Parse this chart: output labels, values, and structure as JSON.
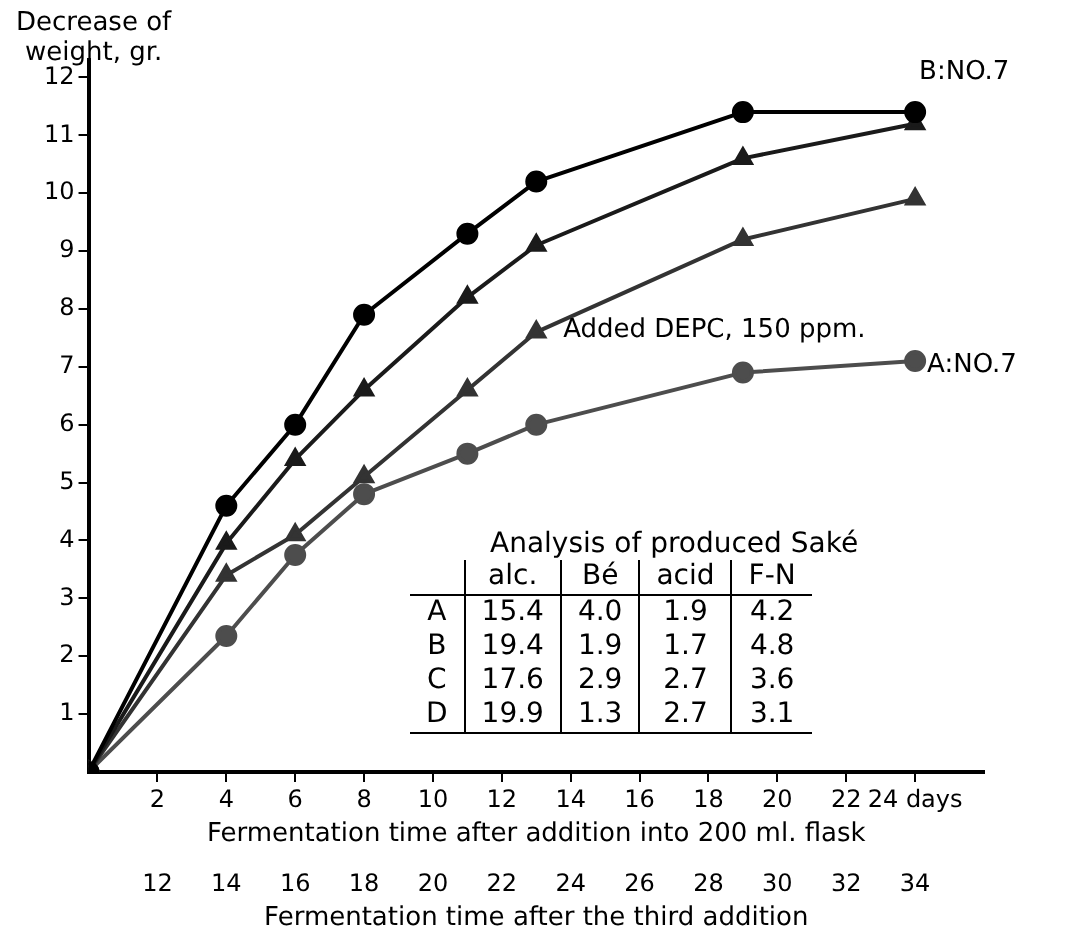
{
  "chart_data": [
    {
      "type": "line",
      "ylabel": "Decrease of\nweight, gr.",
      "xlabel": "Fermentation time after addition into 200 ml. flask",
      "x2label": "Fermentation time after the third addition",
      "x": [
        0,
        4,
        6,
        8,
        11,
        13,
        19,
        24
      ],
      "series": [
        {
          "name": "B:NO.7",
          "color": "#000000",
          "marker": "circle",
          "values": [
            0,
            4.6,
            6.0,
            7.9,
            9.3,
            10.2,
            11.4,
            11.4
          ]
        },
        {
          "color": "#1a1a1a",
          "marker": "triangle",
          "values": [
            0,
            3.95,
            5.4,
            6.6,
            8.2,
            9.1,
            10.6,
            11.2
          ]
        },
        {
          "color": "#333333",
          "marker": "triangle",
          "values": [
            0,
            3.4,
            4.1,
            5.1,
            6.6,
            7.6,
            9.2,
            9.9
          ]
        },
        {
          "name": "A:NO.7",
          "color": "#4d4d4d",
          "marker": "circle",
          "values": [
            0,
            2.35,
            3.75,
            4.8,
            5.5,
            6.0,
            6.9,
            7.1
          ]
        }
      ],
      "xlim": [
        0,
        26
      ],
      "xticks": [
        2,
        4,
        6,
        8,
        10,
        12,
        14,
        16,
        18,
        20,
        22,
        {
          "value": 24,
          "label": "24 days"
        }
      ],
      "x2lim": [
        10,
        36
      ],
      "x2ticks": [
        12,
        14,
        16,
        18,
        20,
        22,
        24,
        26,
        28,
        30,
        32,
        34
      ],
      "ylim": [
        0,
        12.3
      ],
      "yticks": [
        1,
        2,
        3,
        4,
        5,
        6,
        7,
        8,
        9,
        10,
        11,
        12
      ],
      "grid": false,
      "legend": false,
      "line_style": "solid",
      "annotations": [
        "Added DEPC, 150 ppm."
      ]
    },
    {
      "type": "other",
      "title": "Analysis of produced Saké",
      "categories": [
        "A",
        "B",
        "C",
        "D"
      ],
      "series": [
        {
          "name": "alc.",
          "values": [
            15.4,
            19.4,
            17.6,
            19.9
          ],
          "value_labels": [
            "15.4",
            "19.4",
            "17.6",
            "19.9"
          ]
        },
        {
          "name": "Bé",
          "values": [
            4.0,
            1.9,
            2.9,
            1.3
          ],
          "value_labels": [
            "4.0",
            "1.9",
            "2.9",
            "1.3"
          ]
        },
        {
          "name": "acid",
          "values": [
            1.9,
            1.7,
            2.7,
            2.7
          ],
          "value_labels": [
            "1.9",
            "1.7",
            "2.7",
            "2.7"
          ]
        },
        {
          "name": "F-N",
          "values": [
            4.2,
            4.8,
            3.6,
            3.1
          ],
          "value_labels": [
            "4.2",
            "4.8",
            "3.6",
            "3.1"
          ]
        }
      ]
    }
  ]
}
